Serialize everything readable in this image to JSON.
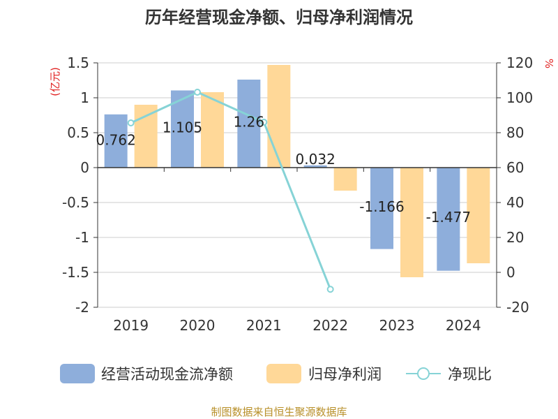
{
  "chart_data": {
    "type": "bar",
    "title": "历年经营现金净额、归母净利润情况",
    "categories": [
      "2019",
      "2020",
      "2021",
      "2022",
      "2023",
      "2024"
    ],
    "series": [
      {
        "name": "经营活动现金流净额",
        "type": "bar",
        "axis": "left",
        "color": "#8eaedb",
        "values": [
          0.762,
          1.105,
          1.26,
          0.032,
          -1.166,
          -1.477
        ],
        "labels": [
          "0.762",
          "1.105",
          "1.26",
          "0.032",
          "-1.166",
          "-1.477"
        ]
      },
      {
        "name": "归母净利润",
        "type": "bar",
        "axis": "left",
        "color": "#ffd898",
        "values": [
          0.9,
          1.08,
          1.47,
          -0.33,
          -1.57,
          -1.37
        ]
      },
      {
        "name": "净现比",
        "type": "line",
        "axis": "right",
        "color": "#86d3d6",
        "values": [
          85.6,
          103.2,
          86.0,
          -9.7,
          null,
          null
        ]
      }
    ],
    "y_left": {
      "unit": "(亿元)",
      "min": -2,
      "max": 1.5,
      "ticks": [
        "1.5",
        "1",
        "0.5",
        "0",
        "-0.5",
        "-1",
        "-1.5",
        "-2"
      ]
    },
    "y_right": {
      "unit": "%",
      "min": -20,
      "max": 120,
      "ticks": [
        "120",
        "100",
        "80",
        "60",
        "40",
        "20",
        "0",
        "-20"
      ]
    },
    "grid": true,
    "legend_position": "bottom"
  },
  "source": "制图数据来自恒生聚源数据库"
}
